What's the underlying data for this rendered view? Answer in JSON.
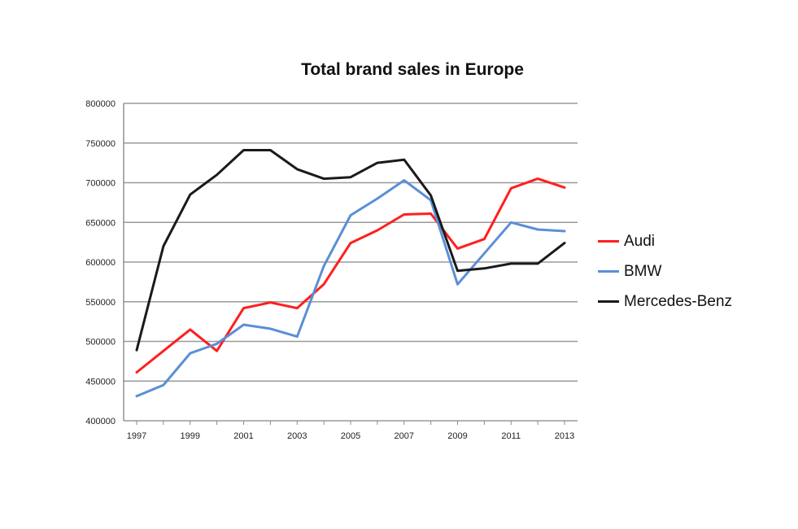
{
  "chart_data": {
    "type": "line",
    "title": "Total brand sales in Europe",
    "xlabel": "",
    "ylabel": "",
    "x": [
      1997,
      1998,
      1999,
      2000,
      2001,
      2002,
      2003,
      2004,
      2005,
      2006,
      2007,
      2008,
      2009,
      2010,
      2011,
      2012,
      2013
    ],
    "x_tick_labels": [
      "1997",
      "1999",
      "2001",
      "2003",
      "2005",
      "2007",
      "2009",
      "2011",
      "2013"
    ],
    "y_tick_labels": [
      "800000",
      "750000",
      "700000",
      "650000",
      "600000",
      "550000",
      "500000",
      "450000",
      "400000"
    ],
    "ylim": [
      400000,
      800000
    ],
    "xlim": [
      1997,
      2013
    ],
    "grid": "horizontal",
    "legend_position": "right",
    "series": [
      {
        "name": "Audi",
        "color": "#ff1f1f",
        "values": [
          461000,
          488000,
          515000,
          488000,
          542000,
          549000,
          542000,
          572000,
          624000,
          640000,
          660000,
          661000,
          617000,
          629000,
          693000,
          705000,
          694000
        ]
      },
      {
        "name": "BMW",
        "color": "#5b8fd6",
        "values": [
          431000,
          445000,
          485000,
          497000,
          521000,
          516000,
          506000,
          595000,
          659000,
          680000,
          703000,
          678000,
          572000,
          611000,
          650000,
          641000,
          639000
        ]
      },
      {
        "name": "Mercedes-Benz",
        "color": "#1a1a1a",
        "values": [
          489000,
          620000,
          685000,
          710000,
          741000,
          741000,
          717000,
          705000,
          707000,
          725000,
          729000,
          684000,
          589000,
          592000,
          598000,
          598000,
          624000
        ]
      }
    ]
  }
}
